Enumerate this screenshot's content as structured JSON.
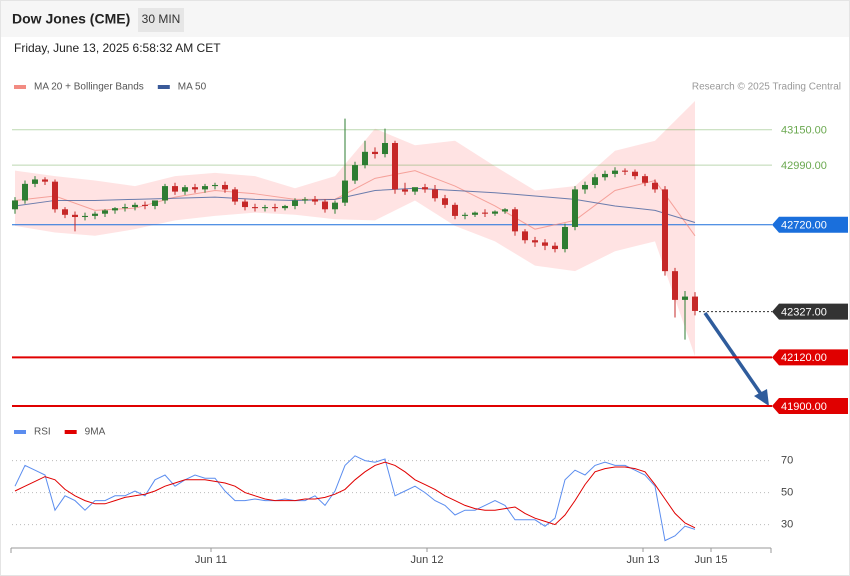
{
  "header": {
    "title": "Dow Jones (CME)",
    "interval": "30 MIN",
    "date": "Friday, June 13, 2025 6:58:32 AM CET",
    "credit": "Research © 2025 Trading Central"
  },
  "chart_data": [
    {
      "type": "candlestick",
      "x": [
        0,
        1,
        2,
        3,
        4,
        5,
        6,
        7,
        8,
        9,
        10,
        11,
        12,
        13,
        14,
        15,
        16,
        17,
        18,
        19,
        20,
        21,
        22,
        23,
        24,
        25,
        26,
        27,
        28,
        29,
        30,
        31,
        32,
        33,
        34,
        35,
        36,
        37,
        38,
        39,
        40,
        41,
        42,
        43,
        44,
        45,
        46,
        47,
        48,
        49,
        50,
        51,
        52,
        53,
        54,
        55,
        56,
        57,
        58,
        59,
        60,
        61,
        62,
        63,
        64,
        65,
        66,
        67,
        68
      ],
      "open": [
        42790,
        42830,
        42905,
        42925,
        42915,
        42790,
        42765,
        42755,
        42760,
        42770,
        42785,
        42795,
        42800,
        42810,
        42805,
        42830,
        42895,
        42870,
        42890,
        42880,
        42895,
        42900,
        42880,
        42825,
        42800,
        42795,
        42800,
        42795,
        42805,
        42830,
        42835,
        42825,
        42790,
        42820,
        42920,
        42990,
        43050,
        43040,
        43090,
        42880,
        42870,
        42890,
        42880,
        42840,
        42810,
        42760,
        42765,
        42775,
        42770,
        42780,
        42790,
        42690,
        42650,
        42640,
        42625,
        42610,
        42710,
        42880,
        42900,
        42935,
        42950,
        42965,
        42960,
        42940,
        42910,
        42880,
        42510,
        42380,
        42395
      ],
      "high": [
        42845,
        42920,
        42940,
        42935,
        42925,
        42800,
        42780,
        42775,
        42780,
        42790,
        42800,
        42815,
        42820,
        42825,
        42820,
        42905,
        42910,
        42900,
        42905,
        42905,
        42910,
        42915,
        42890,
        42835,
        42815,
        42810,
        42815,
        42810,
        42840,
        42845,
        42850,
        42835,
        42830,
        43200,
        43005,
        43100,
        43070,
        43155,
        43100,
        42910,
        42885,
        42905,
        42900,
        42855,
        42820,
        42775,
        42780,
        42790,
        42785,
        42795,
        42800,
        42700,
        42665,
        42655,
        42640,
        42725,
        42895,
        42915,
        42950,
        42965,
        42980,
        42975,
        42970,
        42950,
        42925,
        42895,
        42525,
        42420,
        42415
      ],
      "low": [
        42770,
        42815,
        42890,
        42900,
        42775,
        42750,
        42690,
        42740,
        42745,
        42755,
        42770,
        42780,
        42785,
        42790,
        42790,
        42815,
        42855,
        42855,
        42865,
        42865,
        42880,
        42865,
        42810,
        42785,
        42780,
        42780,
        42780,
        42785,
        42790,
        42815,
        42810,
        42775,
        42770,
        42805,
        42905,
        42975,
        43020,
        43025,
        42860,
        42855,
        42855,
        42865,
        42825,
        42795,
        42745,
        42745,
        42755,
        42755,
        42760,
        42770,
        42670,
        42635,
        42620,
        42605,
        42595,
        42595,
        42695,
        42860,
        42885,
        42920,
        42935,
        42945,
        42925,
        42895,
        42865,
        42490,
        42300,
        42200,
        42310
      ],
      "close": [
        42830,
        42905,
        42925,
        42915,
        42790,
        42765,
        42755,
        42760,
        42770,
        42785,
        42795,
        42800,
        42810,
        42805,
        42830,
        42895,
        42870,
        42890,
        42880,
        42895,
        42900,
        42880,
        42825,
        42800,
        42795,
        42800,
        42795,
        42805,
        42830,
        42835,
        42825,
        42790,
        42820,
        42920,
        42990,
        43050,
        43040,
        43090,
        42880,
        42870,
        42890,
        42880,
        42840,
        42810,
        42760,
        42765,
        42775,
        42770,
        42780,
        42790,
        42690,
        42650,
        42640,
        42625,
        42610,
        42710,
        42880,
        42900,
        42935,
        42950,
        42965,
        42960,
        42940,
        42910,
        42880,
        42510,
        42380,
        42395,
        42330
      ],
      "up_color": "#2e7d32",
      "down_color": "#c62828",
      "overlays": [
        {
          "name": "MA 20 + Bollinger Bands",
          "color": "#f28b82",
          "band_color": "#ffdcdc",
          "x": [
            0,
            4,
            8,
            12,
            16,
            20,
            24,
            28,
            32,
            36,
            40,
            44,
            48,
            52,
            56,
            60,
            64,
            68
          ],
          "values": [
            42830,
            42850,
            42785,
            42795,
            42845,
            42875,
            42860,
            42835,
            42835,
            42930,
            42965,
            42895,
            42805,
            42700,
            42740,
            42875,
            42920,
            42670
          ],
          "upper": [
            42965,
            42940,
            42920,
            42895,
            42940,
            42955,
            42940,
            42885,
            42940,
            43155,
            43080,
            43100,
            42985,
            42875,
            42895,
            43055,
            43100,
            43280
          ],
          "lower": [
            42715,
            42685,
            42670,
            42700,
            42740,
            42760,
            42775,
            42765,
            42745,
            42740,
            42830,
            42715,
            42645,
            42535,
            42510,
            42600,
            42645,
            42125
          ]
        },
        {
          "name": "MA 50",
          "color": "#3a5a99",
          "x": [
            0,
            4,
            8,
            12,
            16,
            20,
            24,
            28,
            32,
            36,
            40,
            44,
            48,
            52,
            56,
            60,
            64,
            68
          ],
          "values": [
            42805,
            42830,
            42830,
            42835,
            42840,
            42845,
            42835,
            42830,
            42835,
            42875,
            42885,
            42875,
            42865,
            42850,
            42835,
            42805,
            42785,
            42730
          ]
        }
      ],
      "levels": [
        {
          "value": 43150,
          "label": "43150.00",
          "color": "#6aa84f",
          "tag": false,
          "line_width": 1
        },
        {
          "value": 42990,
          "label": "42990.00",
          "color": "#6aa84f",
          "tag": false,
          "line_width": 1
        },
        {
          "value": 42720,
          "label": "42720.00",
          "color": "#1a6fdc",
          "tag": true,
          "line_width": 1
        },
        {
          "value": 42327,
          "label": "42327.00",
          "color": "#333333",
          "tag": true,
          "line_width": 1,
          "dashed": true
        },
        {
          "value": 42120,
          "label": "42120.00",
          "color": "#e00000",
          "tag": true,
          "line_width": 2
        },
        {
          "value": 41900,
          "label": "41900.00",
          "color": "#e00000",
          "tag": true,
          "line_width": 2
        }
      ],
      "xlim": [
        -0.3,
        75.7
      ],
      "ylim": [
        41850,
        43280
      ]
    },
    {
      "type": "line",
      "x": [
        0,
        1,
        2,
        3,
        4,
        5,
        6,
        7,
        8,
        9,
        10,
        11,
        12,
        13,
        14,
        15,
        16,
        17,
        18,
        19,
        20,
        21,
        22,
        23,
        24,
        25,
        26,
        27,
        28,
        29,
        30,
        31,
        32,
        33,
        34,
        35,
        36,
        37,
        38,
        39,
        40,
        41,
        42,
        43,
        44,
        45,
        46,
        47,
        48,
        49,
        50,
        51,
        52,
        53,
        54,
        55,
        56,
        57,
        58,
        59,
        60,
        61,
        62,
        63,
        64,
        65,
        66,
        67,
        68
      ],
      "series": [
        {
          "name": "RSI",
          "color": "#5b8def",
          "values": [
            54,
            67,
            64,
            61,
            39,
            48,
            45,
            39,
            45,
            45,
            48,
            48,
            51,
            48,
            58,
            61,
            54,
            58,
            61,
            59,
            59,
            51,
            45,
            45,
            46,
            45,
            45,
            46,
            45,
            45,
            48,
            42,
            51,
            67,
            73,
            70,
            69,
            71,
            48,
            51,
            54,
            50,
            45,
            42,
            36,
            39,
            39,
            42,
            45,
            42,
            33,
            33,
            33,
            29,
            34,
            58,
            64,
            61,
            67,
            69,
            67,
            67,
            64,
            61,
            54,
            20,
            23,
            29,
            27
          ]
        },
        {
          "name": "9MA",
          "color": "#e00000",
          "values": [
            51,
            54,
            57,
            60,
            58,
            52,
            48,
            45,
            43,
            43,
            45,
            47,
            48,
            49,
            51,
            54,
            56,
            58,
            58,
            58,
            57,
            56,
            54,
            50,
            48,
            46,
            45,
            45,
            45,
            46,
            46,
            47,
            49,
            52,
            58,
            63,
            67,
            69,
            67,
            63,
            58,
            55,
            52,
            48,
            45,
            42,
            40,
            39,
            39,
            40,
            41,
            37,
            34,
            32,
            30,
            36,
            45,
            55,
            63,
            65,
            66,
            66,
            65,
            63,
            55,
            46,
            37,
            31,
            28
          ]
        }
      ],
      "xlim": [
        -0.3,
        75.7
      ],
      "ylim": [
        17,
        76
      ],
      "yticks": [
        30,
        50,
        70
      ],
      "xticks": [
        {
          "value": 19.6,
          "label": "Jun 11"
        },
        {
          "value": 41.2,
          "label": "Jun 12"
        },
        {
          "value": 62.8,
          "label": "Jun 13"
        },
        {
          "value": 69.6,
          "label": "Jun 15"
        }
      ],
      "grid": true
    }
  ]
}
